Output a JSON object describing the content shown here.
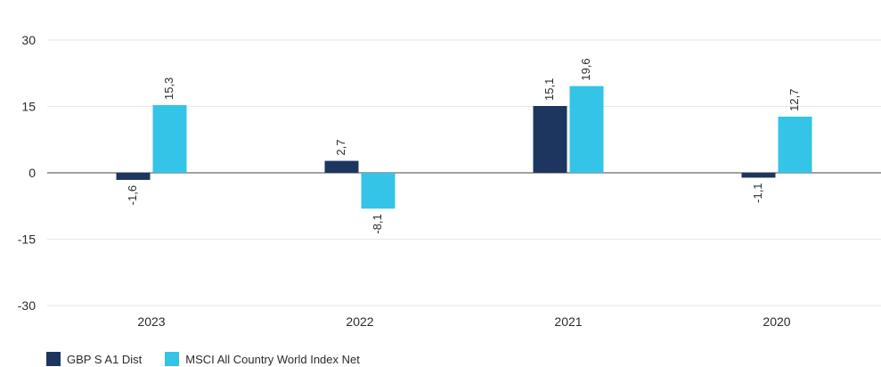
{
  "chart_data": {
    "type": "bar",
    "categories": [
      "2023",
      "2022",
      "2021",
      "2020"
    ],
    "series": [
      {
        "name": "GBP S A1 Dist",
        "values": [
          -1.6,
          2.7,
          15.1,
          -1.1
        ],
        "labels": [
          "-1,6",
          "2,7",
          "15,1",
          "-1,1"
        ],
        "color": "#1d3660"
      },
      {
        "name": "MSCI All Country World Index Net",
        "values": [
          15.3,
          -8.1,
          19.6,
          12.7
        ],
        "labels": [
          "15,3",
          "-8,1",
          "19,6",
          "12,7"
        ],
        "color": "#33c4e8"
      }
    ],
    "yticks": [
      30,
      15,
      0,
      -15,
      -30
    ],
    "ytick_labels": [
      "30",
      "15",
      "0",
      "-15",
      "-30"
    ],
    "ylim": [
      -30,
      30
    ],
    "grid": true,
    "legend": "bottom-left"
  }
}
